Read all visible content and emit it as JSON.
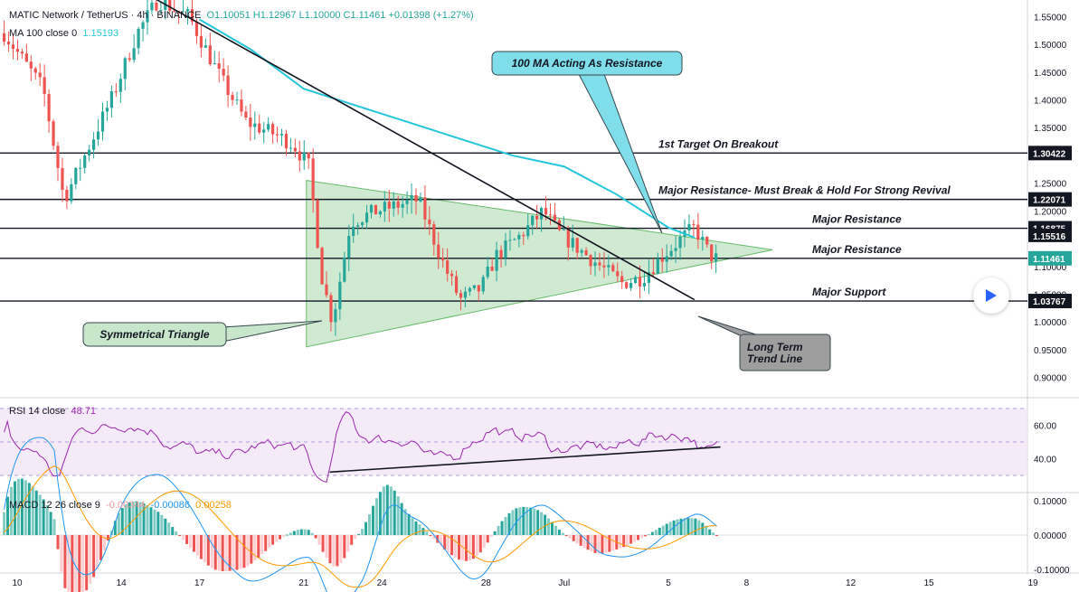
{
  "legend": {
    "symbol": "MATIC Network / TetherUS · 4h · BINANCE",
    "ohlc": "O1.10051 H1.12967 L1.10000 C1.11461 +0.01398 (+1.27%)",
    "ma_label": "MA 100 close 0",
    "ma_value": "1.15193",
    "rsi_label": "RSI 14 close",
    "rsi_value": "48.71",
    "macd_label": "MACD 12 26 close 9",
    "macd_hist": "-0.00344",
    "macd_line": "-0.00086",
    "macd_signal": "0.00258"
  },
  "colors": {
    "up": "#26a69a",
    "down": "#ef5350",
    "ma": "#26c6da",
    "rsi": "#9c27b0",
    "macd": "#2196f3",
    "signal": "#ff9800",
    "triangle_fill": "#c8e6c9",
    "triangle_stroke": "#66bb6a"
  },
  "chart_data": [
    {
      "type": "candlestick",
      "name": "price",
      "ylim": [
        0.87,
        1.58
      ],
      "y_ticks": [
        "1.55000",
        "1.50000",
        "1.45000",
        "1.40000",
        "1.35000",
        "1.25000",
        "1.20000",
        "1.10000",
        "1.05000",
        "1.00000",
        "0.95000",
        "0.90000"
      ],
      "x_ticks": [
        "10",
        "14",
        "17",
        "21",
        "24",
        "28",
        "Jul",
        "5",
        "8",
        "12",
        "15",
        "19"
      ],
      "price_levels": [
        {
          "value": 1.30422,
          "label": "1.30422",
          "note": "1st Target On Breakout"
        },
        {
          "value": 1.22071,
          "label": "1.22071",
          "note": "Major Resistance- Must Break & Hold For Strong Revival"
        },
        {
          "value": 1.16875,
          "label": "1.16875",
          "note": "Major Resistance"
        },
        {
          "value": 1.11461,
          "label": "1.11461",
          "note": "Major Resistance"
        },
        {
          "value": 1.03767,
          "label": "1.03767",
          "note": "Major Support"
        }
      ],
      "ma_badge": {
        "value": 1.15516,
        "label": "1.15516"
      },
      "annotations": [
        {
          "text": "100 MA Acting As Resistance"
        },
        {
          "text": "Symmetrical Triangle"
        },
        {
          "text": "Long Term Trend Line"
        }
      ],
      "triangle": {
        "start": "Jun 21",
        "apex": "Jul 9",
        "top": 1.255,
        "bottom": 0.955,
        "apex_value": 1.13
      },
      "trend_line": {
        "from": [
          1.59,
          "Jun 15"
        ],
        "to": [
          1.04,
          "Jul 6"
        ]
      },
      "ma_path": [
        [
          "Jun 17",
          1.545
        ],
        [
          "Jun 19",
          1.49
        ],
        [
          "Jun 21",
          1.42
        ],
        [
          "Jun 23",
          1.39
        ],
        [
          "Jun 25",
          1.36
        ],
        [
          "Jun 27",
          1.33
        ],
        [
          "Jun 29",
          1.3
        ],
        [
          "Jul 1",
          1.28
        ],
        [
          "Jul 3",
          1.23
        ],
        [
          "Jul 5",
          1.17
        ],
        [
          "Jul 6",
          1.152
        ]
      ]
    },
    {
      "type": "line",
      "name": "RSI 14",
      "ylim": [
        30,
        70
      ],
      "y_ticks": [
        "60.00",
        "40.00"
      ],
      "bands": [
        70,
        50,
        30
      ],
      "support_line": {
        "from": [
          "Jun 22",
          32
        ],
        "to": [
          "Jul 7",
          47
        ]
      }
    },
    {
      "type": "histogram+lines",
      "name": "MACD",
      "ylim": [
        -0.1,
        0.1
      ],
      "y_ticks": [
        "0.10000",
        "0.00000",
        "-0.10000"
      ]
    }
  ]
}
